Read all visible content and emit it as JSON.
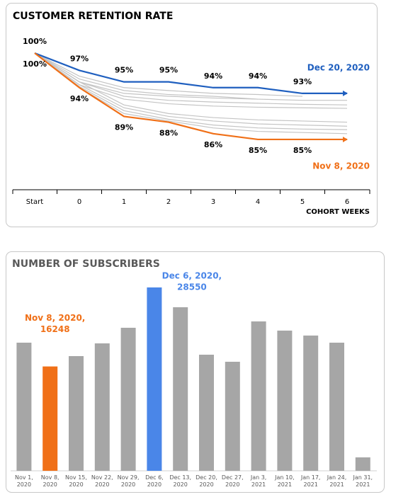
{
  "chart_data": [
    {
      "type": "line",
      "title": "CUSTOMER RETENTION RATE",
      "xlabel": "COHORT WEEKS",
      "categories": [
        "Start",
        "0",
        "1",
        "2",
        "3",
        "4",
        "5",
        "6"
      ],
      "series": [
        {
          "color": "#c4c4c4",
          "values": [
            100,
            96,
            94,
            93.5,
            93,
            92.8,
            92.5,
            null
          ]
        },
        {
          "color": "#c4c4c4",
          "values": [
            100,
            95.5,
            93.5,
            92.8,
            92.5,
            92,
            null,
            null
          ]
        },
        {
          "color": "#c4c4c4",
          "values": [
            100,
            95,
            93,
            92.5,
            92.2,
            92,
            91.8,
            91.8
          ]
        },
        {
          "color": "#c4c4c4",
          "values": [
            100,
            95,
            92.5,
            91.8,
            91.5,
            91.3,
            91.1,
            91
          ]
        },
        {
          "color": "#c4c4c4",
          "values": [
            100,
            94.5,
            92,
            91.2,
            90.8,
            90.6,
            90.5,
            90.4
          ]
        },
        {
          "color": "#c4c4c4",
          "values": [
            100,
            95,
            91,
            89.5,
            88.8,
            88.4,
            88.2,
            88
          ]
        },
        {
          "color": "#c4c4c4",
          "values": [
            100,
            94.5,
            90.5,
            89,
            88.2,
            87.7,
            87.5,
            87.3
          ]
        },
        {
          "color": "#c4c4c4",
          "values": [
            100,
            94.2,
            90,
            88.5,
            87.5,
            87,
            86.8,
            86.7
          ]
        },
        {
          "color": "#c4c4c4",
          "values": [
            100,
            94,
            89.5,
            88.2,
            87,
            86.4,
            86.2,
            86
          ]
        },
        {
          "name": "Dec 20, 2020",
          "color": "#1f5fbf",
          "values": [
            100,
            97,
            95,
            95,
            94,
            94,
            93,
            93
          ],
          "value_labels": [
            "100%",
            "97%",
            "95%",
            "95%",
            "94%",
            "94%",
            "93%",
            null
          ]
        },
        {
          "name": "Nov 8, 2020",
          "color": "#f07018",
          "values": [
            100,
            94,
            89,
            88,
            86,
            85,
            85,
            85
          ],
          "value_labels": [
            "100%",
            "94%",
            "89%",
            "88%",
            "86%",
            "85%",
            "85%",
            null
          ]
        }
      ]
    },
    {
      "type": "bar",
      "title": "NUMBER OF SUBSCRIBERS",
      "categories": [
        "Nov 1, 2020",
        "Nov 8, 2020",
        "Nov 15, 2020",
        "Nov 22, 2020",
        "Nov 29, 2020",
        "Dec 6, 2020",
        "Dec 13, 2020",
        "Dec 20, 2020",
        "Dec 27, 2020",
        "Jan 3, 2021",
        "Jan 10, 2021",
        "Jan 17, 2021",
        "Jan 24, 2021",
        "Jan 31, 2021"
      ],
      "values": [
        19950,
        16248,
        17860,
        19840,
        22270,
        28550,
        25470,
        18080,
        16980,
        23260,
        21830,
        21060,
        19950,
        2090
      ],
      "colors": [
        "#a6a6a6",
        "#f07018",
        "#a6a6a6",
        "#a6a6a6",
        "#a6a6a6",
        "#4a86e8",
        "#a6a6a6",
        "#a6a6a6",
        "#a6a6a6",
        "#a6a6a6",
        "#a6a6a6",
        "#a6a6a6",
        "#a6a6a6",
        "#a6a6a6"
      ],
      "annotations": [
        {
          "text": "Nov 8, 2020,"
        },
        {
          "text": "Dec 6, 2020,"
        }
      ]
    }
  ]
}
